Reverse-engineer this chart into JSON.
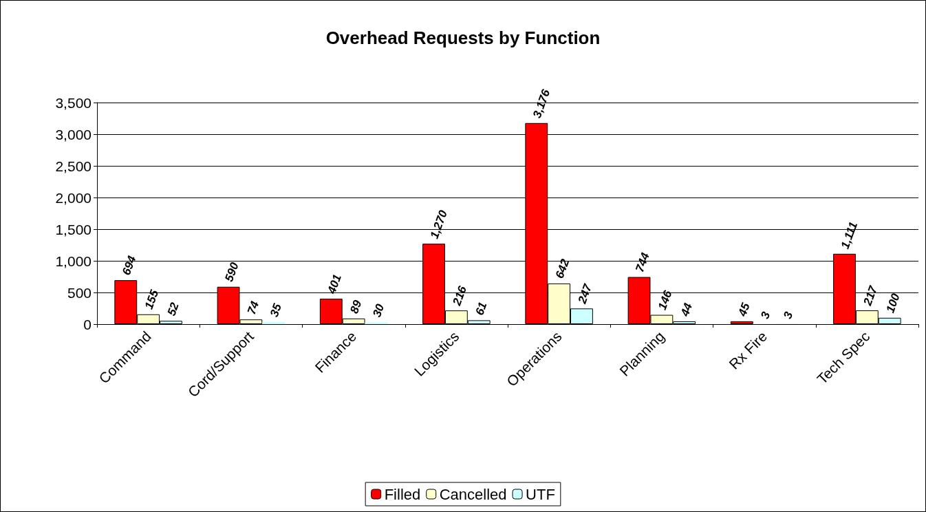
{
  "chart_data": {
    "type": "bar",
    "title": "Overhead Requests by Function",
    "categories": [
      "Command",
      "Cord/Support",
      "Finance",
      "Logistics",
      "Operations",
      "Planning",
      "Rx Fire",
      "Tech Spec"
    ],
    "series": [
      {
        "name": "Filled",
        "color": "#ff0000",
        "values": [
          694,
          590,
          401,
          1270,
          3176,
          744,
          45,
          1111
        ],
        "value_labels": [
          "694",
          "590",
          "401",
          "1,270",
          "3,176",
          "744",
          "45",
          "1,111"
        ]
      },
      {
        "name": "Cancelled",
        "color": "#ffffcc",
        "values": [
          155,
          74,
          89,
          216,
          642,
          146,
          3,
          217
        ],
        "value_labels": [
          "155",
          "74",
          "89",
          "216",
          "642",
          "146",
          "3",
          "217"
        ]
      },
      {
        "name": "UTF",
        "color": "#ccffff",
        "values": [
          52,
          35,
          30,
          61,
          247,
          44,
          3,
          100
        ],
        "value_labels": [
          "52",
          "35",
          "30",
          "61",
          "247",
          "44",
          "3",
          "100"
        ]
      }
    ],
    "ylim": [
      0,
      3500
    ],
    "yticks": [
      0,
      500,
      {
        "value": 1000,
        "label": "1,000"
      },
      {
        "value": 1500,
        "label": "1,500"
      },
      {
        "value": 2000,
        "label": "2,000"
      },
      {
        "value": 2500,
        "label": "2,500"
      },
      {
        "value": 3000,
        "label": "3,000"
      },
      {
        "value": 3500,
        "label": "3,500"
      }
    ],
    "grid": "y",
    "legend": "bottom"
  }
}
